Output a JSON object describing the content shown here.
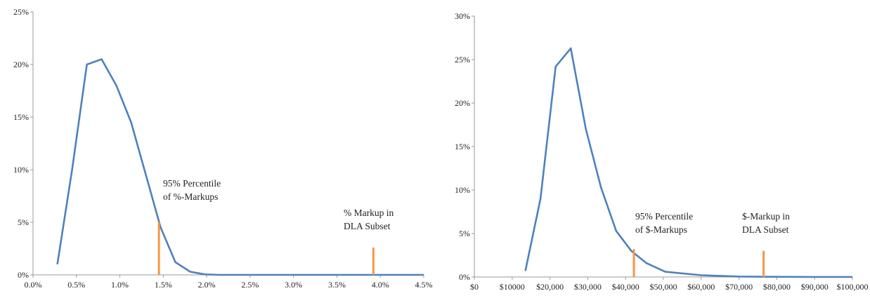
{
  "chart_data": [
    {
      "type": "line",
      "title": "",
      "xlabel": "",
      "ylabel": "",
      "x_ticks": [
        "0.0%",
        "0.5%",
        "1.0%",
        "1.5%",
        "2.0%",
        "2.5%",
        "3.0%",
        "3.5%",
        "4.0%",
        "4.5%"
      ],
      "y_ticks": [
        "0%",
        "5%",
        "10%",
        "15%",
        "20%",
        "25%"
      ],
      "xlim": [
        0,
        4.5
      ],
      "ylim": [
        0,
        25
      ],
      "grid": false,
      "series": [
        {
          "color": "#4f81bd",
          "x": [
            0.28,
            0.45,
            0.62,
            0.79,
            0.96,
            1.13,
            1.3,
            1.47,
            1.64,
            1.81,
            1.98,
            2.15,
            2.5,
            3.0,
            3.5,
            4.0,
            4.5
          ],
          "y": [
            1.0,
            10.0,
            20.0,
            20.5,
            18.0,
            14.5,
            9.5,
            4.5,
            1.2,
            0.3,
            0.05,
            0.0,
            0.0,
            0.0,
            0.0,
            0.0,
            0.0
          ]
        }
      ],
      "markers": [
        {
          "x": 1.45,
          "height": 5.0,
          "color": "#f79646",
          "label_lines": [
            "95% Percentile",
            "of %-Markups"
          ]
        },
        {
          "x": 3.92,
          "height": 2.6,
          "color": "#f79646",
          "label_lines": [
            "% Markup in",
            "DLA Subset"
          ]
        }
      ]
    },
    {
      "type": "line",
      "title": "",
      "xlabel": "",
      "ylabel": "",
      "x_ticks": [
        "$0",
        "$10000",
        "$20,000",
        "$30,000",
        "$40,000",
        "$50,000",
        "$60,000",
        "$70,000",
        "$80,000",
        "$90,000",
        "$100,000"
      ],
      "y_ticks": [
        "0%",
        "5%",
        "10%",
        "15%",
        "20%",
        "25%",
        "30%"
      ],
      "xlim": [
        0,
        100000
      ],
      "ylim": [
        0,
        30
      ],
      "grid": false,
      "series": [
        {
          "color": "#4f81bd",
          "x": [
            13500,
            17500,
            21500,
            25500,
            29500,
            33500,
            37500,
            41500,
            45500,
            50500,
            60000,
            70000,
            80000,
            90000,
            100000
          ],
          "y": [
            0.7,
            9.0,
            24.2,
            26.3,
            17.0,
            10.3,
            5.3,
            3.0,
            1.6,
            0.6,
            0.2,
            0.05,
            0.02,
            0.0,
            0.0
          ]
        }
      ],
      "markers": [
        {
          "x": 42200,
          "height": 3.2,
          "color": "#f79646",
          "label_lines": [
            "95% Percentile",
            "of $-Markups"
          ]
        },
        {
          "x": 76500,
          "height": 3.0,
          "color": "#f79646",
          "label_lines": [
            "$-Markup in",
            "DLA Subset"
          ]
        }
      ]
    }
  ]
}
